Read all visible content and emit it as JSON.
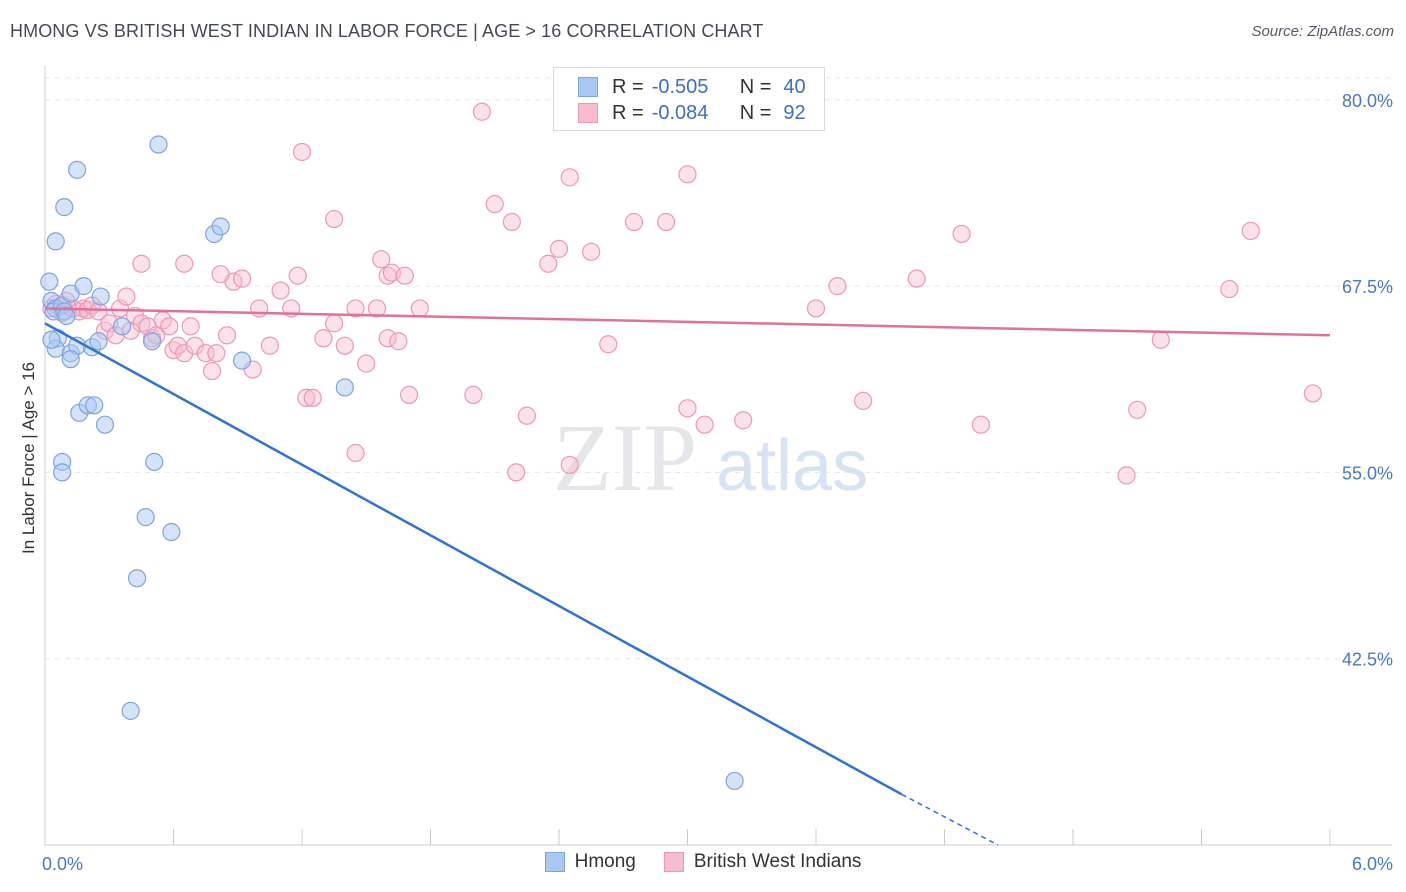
{
  "title": "HMONG VS BRITISH WEST INDIAN IN LABOR FORCE | AGE > 16 CORRELATION CHART",
  "source": "Source: ZipAtlas.com",
  "watermark": {
    "zip": "ZIP",
    "atlas": "atlas"
  },
  "legend": {
    "r_label": "R =",
    "n_label": "N =",
    "hmong": {
      "r": "-0.505",
      "n": "40"
    },
    "bwi": {
      "r": "-0.084",
      "n": "92"
    }
  },
  "bottom_legend": {
    "hmong": "Hmong",
    "bwi": "British West Indians"
  },
  "colors": {
    "hmong_fill": "#a9c8f2",
    "hmong_stroke": "#7ea4dc",
    "hmong_line": "#2f73d6",
    "bwi_fill": "#f7bcd0",
    "bwi_stroke": "#ec97b5",
    "bwi_line": "#e2709a",
    "tick_label": "#4a78c8",
    "grid": "#e3e6ea"
  },
  "chart_data": {
    "type": "scatter",
    "title": "HMONG VS BRITISH WEST INDIAN IN LABOR FORCE | AGE > 16 CORRELATION CHART",
    "xlabel": "",
    "ylabel": "In Labor Force | Age > 16",
    "xlim": [
      0.0,
      6.0
    ],
    "ylim": [
      30.0,
      82.0
    ],
    "x_tick_labels": [
      "0.0%",
      "6.0%"
    ],
    "y_ticks": [
      42.5,
      55.0,
      67.5,
      80.0
    ],
    "y_tick_labels": [
      "42.5%",
      "55.0%",
      "67.5%",
      "80.0%"
    ],
    "grid": true,
    "series": [
      {
        "name": "Hmong",
        "R": -0.505,
        "N": 40,
        "trend": {
          "x": [
            0.0,
            4.0
          ],
          "y": [
            65.0,
            33.4
          ],
          "dashed_to": [
            4.45,
            29.8
          ]
        },
        "points": [
          [
            0.02,
            67.8
          ],
          [
            0.03,
            66.5
          ],
          [
            0.05,
            66.0
          ],
          [
            0.04,
            65.8
          ],
          [
            0.06,
            64.0
          ],
          [
            0.05,
            63.3
          ],
          [
            0.08,
            66.2
          ],
          [
            0.09,
            65.8
          ],
          [
            0.12,
            67.0
          ],
          [
            0.1,
            65.5
          ],
          [
            0.12,
            63.0
          ],
          [
            0.15,
            63.5
          ],
          [
            0.18,
            67.5
          ],
          [
            0.22,
            63.4
          ],
          [
            0.26,
            66.8
          ],
          [
            0.36,
            64.8
          ],
          [
            0.5,
            63.8
          ],
          [
            0.05,
            70.5
          ],
          [
            0.09,
            72.8
          ],
          [
            0.15,
            75.3
          ],
          [
            0.53,
            77.0
          ],
          [
            0.79,
            71.0
          ],
          [
            0.82,
            71.5
          ],
          [
            0.92,
            62.5
          ],
          [
            1.4,
            60.7
          ],
          [
            0.16,
            59.0
          ],
          [
            0.2,
            59.5
          ],
          [
            0.23,
            59.5
          ],
          [
            0.28,
            58.2
          ],
          [
            0.08,
            55.7
          ],
          [
            0.08,
            55.0
          ],
          [
            0.51,
            55.7
          ],
          [
            0.47,
            52.0
          ],
          [
            0.59,
            51.0
          ],
          [
            0.43,
            47.9
          ],
          [
            0.4,
            39.0
          ],
          [
            3.22,
            34.3
          ],
          [
            0.12,
            62.6
          ],
          [
            0.25,
            63.8
          ],
          [
            0.03,
            63.9
          ]
        ]
      },
      {
        "name": "British West Indians",
        "R": -0.084,
        "N": 92,
        "trend": {
          "x": [
            0.0,
            6.0
          ],
          "y": [
            66.0,
            64.2
          ]
        },
        "points": [
          [
            0.03,
            66.0
          ],
          [
            0.05,
            66.3
          ],
          [
            0.08,
            65.7
          ],
          [
            0.1,
            66.5
          ],
          [
            0.13,
            66.0
          ],
          [
            0.16,
            65.8
          ],
          [
            0.18,
            66.0
          ],
          [
            0.2,
            65.9
          ],
          [
            0.22,
            66.2
          ],
          [
            0.25,
            65.8
          ],
          [
            0.28,
            64.5
          ],
          [
            0.3,
            65.0
          ],
          [
            0.33,
            64.2
          ],
          [
            0.35,
            66.0
          ],
          [
            0.38,
            66.8
          ],
          [
            0.4,
            64.5
          ],
          [
            0.42,
            65.5
          ],
          [
            0.45,
            65.0
          ],
          [
            0.48,
            64.8
          ],
          [
            0.5,
            64.0
          ],
          [
            0.52,
            64.2
          ],
          [
            0.55,
            65.2
          ],
          [
            0.58,
            64.8
          ],
          [
            0.6,
            63.2
          ],
          [
            0.62,
            63.5
          ],
          [
            0.65,
            63.0
          ],
          [
            0.68,
            64.8
          ],
          [
            0.7,
            63.5
          ],
          [
            0.75,
            63.0
          ],
          [
            0.78,
            61.8
          ],
          [
            0.8,
            63.0
          ],
          [
            0.85,
            64.2
          ],
          [
            0.88,
            67.8
          ],
          [
            0.92,
            68.0
          ],
          [
            1.0,
            66.0
          ],
          [
            1.05,
            63.5
          ],
          [
            1.1,
            67.2
          ],
          [
            1.15,
            66.0
          ],
          [
            1.18,
            68.2
          ],
          [
            1.22,
            60.0
          ],
          [
            1.25,
            60.0
          ],
          [
            1.3,
            64.0
          ],
          [
            1.35,
            65.0
          ],
          [
            1.4,
            63.5
          ],
          [
            1.45,
            66.0
          ],
          [
            1.5,
            62.3
          ],
          [
            1.55,
            66.0
          ],
          [
            1.6,
            64.0
          ],
          [
            1.65,
            63.8
          ],
          [
            1.7,
            60.2
          ],
          [
            1.75,
            66.0
          ],
          [
            1.2,
            76.5
          ],
          [
            1.35,
            72.0
          ],
          [
            1.6,
            68.2
          ],
          [
            1.45,
            56.3
          ],
          [
            1.57,
            69.3
          ],
          [
            1.62,
            68.4
          ],
          [
            0.65,
            69.0
          ],
          [
            0.45,
            69.0
          ],
          [
            0.82,
            68.3
          ],
          [
            0.97,
            61.9
          ],
          [
            1.68,
            68.2
          ],
          [
            2.0,
            60.2
          ],
          [
            2.1,
            73.0
          ],
          [
            2.18,
            71.8
          ],
          [
            2.35,
            69.0
          ],
          [
            2.4,
            70.0
          ],
          [
            2.45,
            55.5
          ],
          [
            2.25,
            58.8
          ],
          [
            2.2,
            55.0
          ],
          [
            2.45,
            74.8
          ],
          [
            2.55,
            69.8
          ],
          [
            2.75,
            71.8
          ],
          [
            3.0,
            59.3
          ],
          [
            3.08,
            58.2
          ],
          [
            3.26,
            58.5
          ],
          [
            3.6,
            66.0
          ],
          [
            3.7,
            67.5
          ],
          [
            3.82,
            59.8
          ],
          [
            4.07,
            68.0
          ],
          [
            4.28,
            71.0
          ],
          [
            4.37,
            58.2
          ],
          [
            5.05,
            54.8
          ],
          [
            5.1,
            59.2
          ],
          [
            5.21,
            63.9
          ],
          [
            5.53,
            67.3
          ],
          [
            5.63,
            71.2
          ],
          [
            5.92,
            60.3
          ],
          [
            2.9,
            71.8
          ],
          [
            2.63,
            63.6
          ],
          [
            2.04,
            79.2
          ],
          [
            3.0,
            75.0
          ]
        ]
      }
    ]
  }
}
